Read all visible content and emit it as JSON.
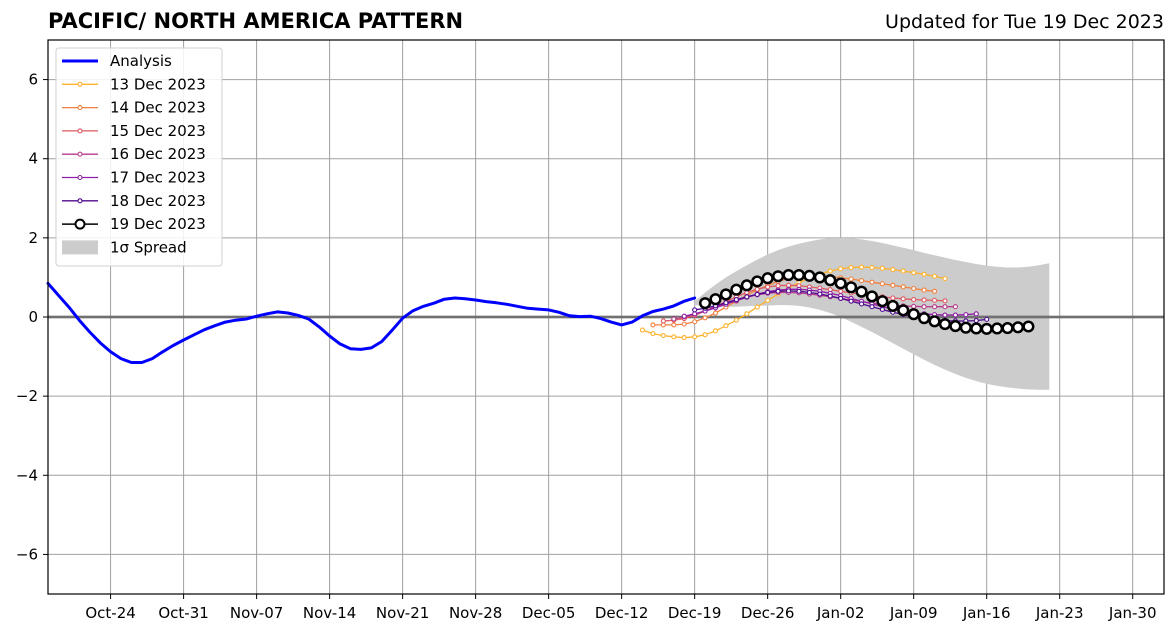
{
  "chart_data": {
    "type": "line",
    "title": "PACIFIC/ NORTH AMERICA PATTERN",
    "subtitle": "Updated for Tue 19 Dec 2023",
    "xlabel": "",
    "ylabel": "",
    "xlim": [
      "2023-10-18",
      "2024-02-02"
    ],
    "ylim": [
      -7,
      7
    ],
    "grid": true,
    "legend_position": "upper-left",
    "x_ticks": [
      "Oct-24",
      "Oct-31",
      "Nov-07",
      "Nov-14",
      "Nov-21",
      "Nov-28",
      "Dec-05",
      "Dec-12",
      "Dec-19",
      "Dec-26",
      "Jan-02",
      "Jan-09",
      "Jan-16",
      "Jan-23",
      "Jan-30"
    ],
    "x_tick_dates": [
      "2023-10-24",
      "2023-10-31",
      "2023-11-07",
      "2023-11-14",
      "2023-11-21",
      "2023-11-28",
      "2023-12-05",
      "2023-12-12",
      "2023-12-19",
      "2023-12-26",
      "2024-01-02",
      "2024-01-09",
      "2024-01-16",
      "2024-01-23",
      "2024-01-30"
    ],
    "y_ticks": [
      -6,
      -4,
      -2,
      0,
      2,
      4,
      6
    ],
    "y_tick_labels": [
      "−6",
      "−4",
      "−2",
      "0",
      "2",
      "4",
      "6"
    ],
    "analysis": {
      "name": "Analysis",
      "color": "#0000ff",
      "start": "2023-10-18",
      "values": [
        0.85,
        0.55,
        0.25,
        -0.08,
        -0.38,
        -0.65,
        -0.88,
        -1.05,
        -1.15,
        -1.15,
        -1.05,
        -0.88,
        -0.72,
        -0.58,
        -0.45,
        -0.32,
        -0.22,
        -0.13,
        -0.08,
        -0.05,
        0.02,
        0.08,
        0.13,
        0.1,
        0.04,
        -0.05,
        -0.25,
        -0.48,
        -0.68,
        -0.8,
        -0.82,
        -0.78,
        -0.62,
        -0.33,
        -0.03,
        0.16,
        0.27,
        0.35,
        0.45,
        0.48,
        0.46,
        0.43,
        0.39,
        0.36,
        0.32,
        0.27,
        0.22,
        0.2,
        0.18,
        0.12,
        0.03,
        0.01,
        0.02,
        -0.04,
        -0.13,
        -0.2,
        -0.13,
        0.03,
        0.14,
        0.2,
        0.28,
        0.4,
        0.48
      ]
    },
    "forecasts": [
      {
        "name": "13 Dec 2023",
        "color": "#fcb22c",
        "start": "2023-12-14",
        "values": [
          -0.33,
          -0.42,
          -0.47,
          -0.5,
          -0.52,
          -0.5,
          -0.45,
          -0.35,
          -0.22,
          -0.08,
          0.08,
          0.25,
          0.42,
          0.58,
          0.73,
          0.87,
          0.99,
          1.09,
          1.16,
          1.22,
          1.25,
          1.26,
          1.25,
          1.23,
          1.2,
          1.16,
          1.12,
          1.08,
          1.03,
          0.97
        ]
      },
      {
        "name": "14 Dec 2023",
        "color": "#f2813f",
        "start": "2023-12-15",
        "values": [
          -0.2,
          -0.2,
          -0.2,
          -0.18,
          -0.12,
          -0.02,
          0.1,
          0.25,
          0.4,
          0.55,
          0.68,
          0.8,
          0.9,
          0.97,
          1.02,
          1.04,
          1.04,
          1.02,
          0.99,
          0.96,
          0.92,
          0.88,
          0.84,
          0.8,
          0.76,
          0.72,
          0.68,
          0.65
        ]
      },
      {
        "name": "15 Dec 2023",
        "color": "#de5a62",
        "start": "2023-12-16",
        "values": [
          -0.1,
          -0.08,
          -0.04,
          0.04,
          0.15,
          0.27,
          0.39,
          0.51,
          0.62,
          0.7,
          0.76,
          0.79,
          0.8,
          0.79,
          0.76,
          0.73,
          0.69,
          0.65,
          0.61,
          0.57,
          0.54,
          0.51,
          0.48,
          0.46,
          0.44,
          0.43,
          0.42,
          0.41
        ]
      },
      {
        "name": "16 Dec 2023",
        "color": "#b83d8c",
        "start": "2023-12-17",
        "values": [
          -0.05,
          0.0,
          0.07,
          0.16,
          0.25,
          0.34,
          0.43,
          0.5,
          0.56,
          0.6,
          0.62,
          0.62,
          0.61,
          0.58,
          0.55,
          0.51,
          0.47,
          0.43,
          0.39,
          0.35,
          0.32,
          0.3,
          0.28,
          0.27,
          0.26,
          0.26,
          0.26,
          0.26
        ]
      },
      {
        "name": "17 Dec 2023",
        "color": "#8e1ea6",
        "start": "2023-12-18",
        "values": [
          0.02,
          0.08,
          0.15,
          0.23,
          0.32,
          0.41,
          0.5,
          0.58,
          0.64,
          0.68,
          0.7,
          0.7,
          0.68,
          0.65,
          0.6,
          0.54,
          0.47,
          0.4,
          0.33,
          0.26,
          0.2,
          0.15,
          0.11,
          0.08,
          0.06,
          0.05,
          0.05,
          0.06,
          0.08
        ]
      },
      {
        "name": "18 Dec 2023",
        "color": "#4f0a8f",
        "start": "2023-12-19",
        "values": [
          0.18,
          0.22,
          0.28,
          0.36,
          0.44,
          0.51,
          0.57,
          0.62,
          0.65,
          0.66,
          0.65,
          0.62,
          0.58,
          0.53,
          0.47,
          0.4,
          0.33,
          0.26,
          0.19,
          0.12,
          0.06,
          0.0,
          -0.04,
          -0.07,
          -0.09,
          -0.1,
          -0.1,
          -0.09,
          -0.06
        ]
      },
      {
        "name": "19 Dec 2023",
        "color": "#000000",
        "start": "2023-12-20",
        "values": [
          0.35,
          0.45,
          0.57,
          0.69,
          0.8,
          0.9,
          0.98,
          1.03,
          1.06,
          1.06,
          1.04,
          1.0,
          0.93,
          0.85,
          0.75,
          0.64,
          0.52,
          0.4,
          0.28,
          0.17,
          0.07,
          -0.03,
          -0.11,
          -0.18,
          -0.23,
          -0.27,
          -0.29,
          -0.3,
          -0.29,
          -0.28,
          -0.26,
          -0.24
        ]
      }
    ],
    "spread": {
      "name": "1σ Spread",
      "color": "#cccccc",
      "start": "2023-12-19",
      "upper": [
        0.4,
        0.62,
        0.82,
        1.0,
        1.16,
        1.31,
        1.45,
        1.58,
        1.69,
        1.78,
        1.85,
        1.91,
        1.96,
        1.99,
        2.0,
        1.99,
        1.96,
        1.92,
        1.87,
        1.81,
        1.75,
        1.69,
        1.62,
        1.56,
        1.5,
        1.44,
        1.39,
        1.34,
        1.3,
        1.27,
        1.25,
        1.25,
        1.27,
        1.31,
        1.36
      ],
      "lower": [
        0.3,
        0.28,
        0.27,
        0.26,
        0.26,
        0.27,
        0.28,
        0.29,
        0.3,
        0.3,
        0.28,
        0.24,
        0.18,
        0.1,
        0.0,
        -0.12,
        -0.25,
        -0.38,
        -0.52,
        -0.66,
        -0.8,
        -0.94,
        -1.08,
        -1.21,
        -1.33,
        -1.44,
        -1.54,
        -1.62,
        -1.69,
        -1.74,
        -1.78,
        -1.81,
        -1.83,
        -1.84,
        -1.84
      ]
    }
  }
}
